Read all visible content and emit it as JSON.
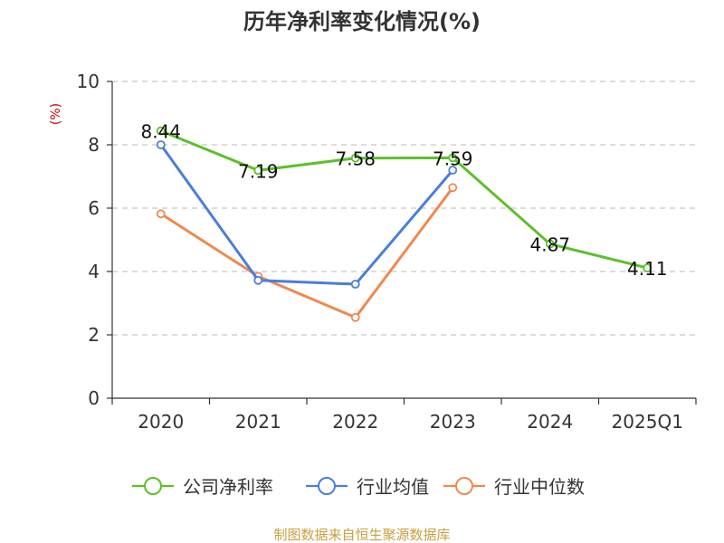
{
  "title": "历年净利率变化情况(%)",
  "unit": "(%)",
  "source": "制图数据来自恒生聚源数据库",
  "chart_data": {
    "type": "line",
    "title": "历年净利率变化情况(%)",
    "ylabel": "(%)",
    "categories": [
      "2020",
      "2021",
      "2022",
      "2023",
      "2024",
      "2025Q1"
    ],
    "ylim": [
      0,
      10
    ],
    "yticks": [
      0,
      2,
      4,
      6,
      8,
      10
    ],
    "grid": "horizontal-dashed",
    "legend": "bottom",
    "series": [
      {
        "name": "公司净利率",
        "color": "#5cc02a",
        "labels": true,
        "values": [
          8.44,
          7.19,
          7.58,
          7.59,
          4.87,
          4.11
        ]
      },
      {
        "name": "行业均值",
        "color": "#4a7fd8",
        "labels": false,
        "values": [
          8.0,
          3.72,
          3.6,
          7.2,
          null,
          null
        ]
      },
      {
        "name": "行业中位数",
        "color": "#f08850",
        "labels": false,
        "values": [
          5.82,
          3.85,
          2.55,
          6.65,
          null,
          null
        ]
      }
    ]
  }
}
